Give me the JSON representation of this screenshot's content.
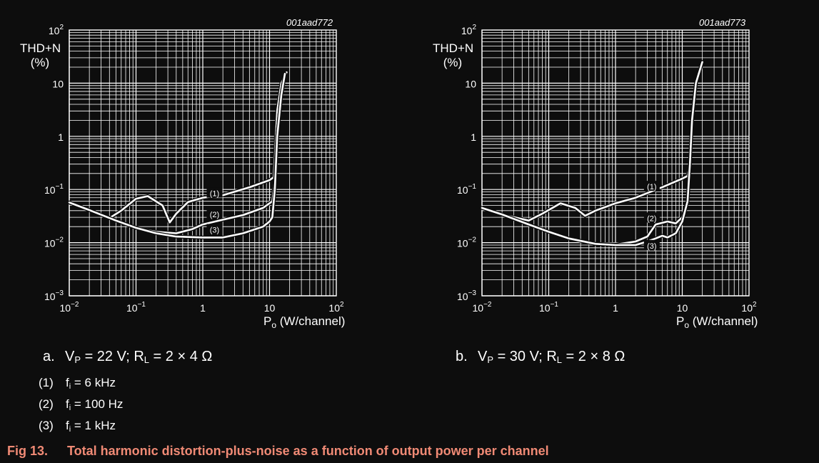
{
  "chart_data": [
    {
      "type": "line",
      "panel": "a",
      "code": "001aad772",
      "ylabel": "THD+N (%)",
      "xlabel": "Po (W/channel)",
      "x_scale": "log",
      "y_scale": "log",
      "xlim": [
        0.01,
        100
      ],
      "ylim": [
        0.001,
        100
      ],
      "x_ticks": [
        "10−2",
        "10−1",
        "1",
        "10",
        "102"
      ],
      "y_ticks": [
        "10−3",
        "10−2",
        "10−1",
        "1",
        "10",
        "102"
      ],
      "grid": true,
      "series": [
        {
          "name": "(1)",
          "x": [
            0.01,
            0.02,
            0.04,
            0.06,
            0.1,
            0.15,
            0.25,
            0.32,
            0.4,
            0.6,
            1,
            2,
            5,
            10,
            11.5,
            12,
            13,
            15,
            18
          ],
          "y": [
            0.057,
            0.041,
            0.029,
            0.04,
            0.067,
            0.075,
            0.05,
            0.024,
            0.035,
            0.058,
            0.07,
            0.078,
            0.11,
            0.15,
            0.17,
            0.4,
            3,
            10,
            16
          ]
        },
        {
          "name": "(2)",
          "x": [
            0.01,
            0.02,
            0.05,
            0.1,
            0.2,
            0.4,
            0.7,
            1,
            2,
            4,
            8,
            11,
            12,
            13,
            15,
            17
          ],
          "y": [
            0.057,
            0.041,
            0.026,
            0.019,
            0.016,
            0.015,
            0.018,
            0.022,
            0.027,
            0.033,
            0.045,
            0.06,
            0.15,
            1,
            6,
            15
          ]
        },
        {
          "name": "(3)",
          "x": [
            0.01,
            0.02,
            0.05,
            0.1,
            0.2,
            0.4,
            1,
            2,
            4,
            8,
            10,
            11,
            12,
            13,
            15,
            17
          ],
          "y": [
            0.057,
            0.041,
            0.026,
            0.019,
            0.015,
            0.013,
            0.0125,
            0.0125,
            0.015,
            0.02,
            0.025,
            0.03,
            0.1,
            1,
            6,
            15
          ]
        }
      ],
      "series_labels_at": [
        [
          1.5,
          0.082
        ],
        [
          1.5,
          0.033
        ],
        [
          1.5,
          0.017
        ]
      ]
    },
    {
      "type": "line",
      "panel": "b",
      "code": "001aad773",
      "ylabel": "THD+N (%)",
      "xlabel": "Po (W/channel)",
      "x_scale": "log",
      "y_scale": "log",
      "xlim": [
        0.01,
        100
      ],
      "ylim": [
        0.001,
        100
      ],
      "x_ticks": [
        "10−2",
        "10−1",
        "1",
        "10",
        "102"
      ],
      "y_ticks": [
        "10−3",
        "10−2",
        "10−1",
        "1",
        "10",
        "102"
      ],
      "grid": true,
      "series": [
        {
          "name": "(1)",
          "x": [
            0.01,
            0.02,
            0.05,
            0.08,
            0.15,
            0.25,
            0.35,
            0.5,
            1,
            2,
            5,
            10,
            12,
            13,
            14,
            16,
            20
          ],
          "y": [
            0.045,
            0.034,
            0.026,
            0.035,
            0.055,
            0.045,
            0.032,
            0.04,
            0.055,
            0.07,
            0.11,
            0.16,
            0.18,
            0.3,
            2,
            10,
            25
          ]
        },
        {
          "name": "(2)",
          "x": [
            0.01,
            0.02,
            0.05,
            0.1,
            0.2,
            0.5,
            1,
            2,
            3,
            4,
            6,
            8,
            10,
            12,
            13,
            14,
            16,
            20
          ],
          "y": [
            0.045,
            0.034,
            0.022,
            0.016,
            0.012,
            0.0095,
            0.0092,
            0.0105,
            0.013,
            0.022,
            0.025,
            0.023,
            0.03,
            0.06,
            0.3,
            2,
            10,
            25
          ]
        },
        {
          "name": "(3)",
          "x": [
            0.01,
            0.02,
            0.05,
            0.1,
            0.2,
            0.5,
            1,
            2,
            3,
            4,
            5,
            6,
            8,
            10,
            12,
            13,
            14,
            16,
            20
          ],
          "y": [
            0.045,
            0.034,
            0.022,
            0.016,
            0.012,
            0.0095,
            0.009,
            0.009,
            0.0105,
            0.012,
            0.0135,
            0.0125,
            0.015,
            0.025,
            0.06,
            0.3,
            2,
            10,
            25
          ]
        }
      ],
      "series_labels_at": [
        [
          3.5,
          0.11
        ],
        [
          3.5,
          0.028
        ],
        [
          3.5,
          0.0085
        ]
      ]
    }
  ],
  "labels": {
    "ylabel_line1": "THD+N",
    "ylabel_line2": "(%)",
    "xlabel_main": "P",
    "xlabel_sub": "o",
    "xlabel_rest": " (W/channel)",
    "code_a": "001aad772",
    "code_b": "001aad773"
  },
  "subcaptions": {
    "a": {
      "letter": "a.",
      "vp_v": "V",
      "vp_sub": "P",
      "vp_val": " = 22 V; R",
      "rl_sub": "L",
      "rl_val": " = 2 × 4 Ω"
    },
    "b": {
      "letter": "b.",
      "vp_v": "V",
      "vp_sub": "P",
      "vp_val": " = 30 V; R",
      "rl_sub": "L",
      "rl_val": " = 2 × 8 Ω"
    }
  },
  "legend": [
    {
      "num": "(1)",
      "f": "f",
      "sub": "i",
      "val": " = 6 kHz"
    },
    {
      "num": "(2)",
      "f": "f",
      "sub": "i",
      "val": " = 100 Hz"
    },
    {
      "num": "(3)",
      "f": "f",
      "sub": "i",
      "val": " = 1 kHz"
    }
  ],
  "caption": {
    "fig_no": "Fig 13.",
    "text": "Total harmonic distortion-plus-noise as a function of output power per channel"
  },
  "colors": {
    "background": "#0d0d0d",
    "grid": "#ffffff",
    "curve": "#ffffff",
    "caption": "#f08a75"
  }
}
